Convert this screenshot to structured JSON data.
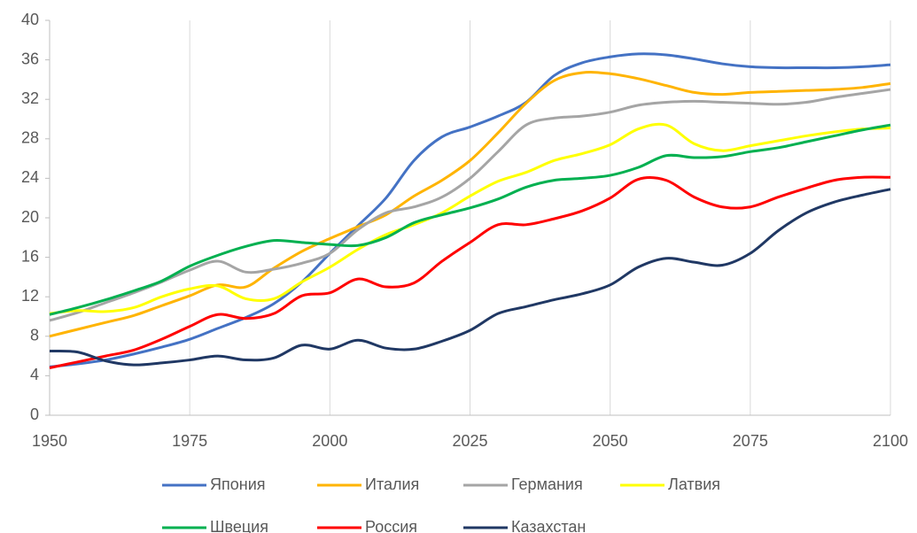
{
  "chart_data": {
    "type": "line",
    "x": [
      1950,
      1955,
      1960,
      1965,
      1970,
      1975,
      1980,
      1985,
      1990,
      1995,
      2000,
      2005,
      2010,
      2015,
      2020,
      2025,
      2030,
      2035,
      2040,
      2045,
      2050,
      2055,
      2060,
      2065,
      2070,
      2075,
      2080,
      2085,
      2090,
      2095,
      2100
    ],
    "xlim": [
      1950,
      2100
    ],
    "xticks": [
      1950,
      1975,
      2000,
      2025,
      2050,
      2075,
      2100
    ],
    "ylim": [
      0,
      40
    ],
    "yticks": [
      0,
      4,
      8,
      12,
      16,
      20,
      24,
      28,
      32,
      36,
      40
    ],
    "grid": true,
    "legend": "bottom",
    "series": [
      {
        "name": "Япония",
        "color": "#4472c4",
        "values": [
          4.9,
          5.2,
          5.6,
          6.2,
          6.9,
          7.7,
          8.8,
          9.9,
          11.3,
          13.5,
          16.4,
          19.2,
          22.0,
          25.8,
          28.2,
          29.2,
          30.3,
          31.7,
          34.4,
          35.7,
          36.3,
          36.6,
          36.5,
          36.1,
          35.6,
          35.3,
          35.2,
          35.2,
          35.2,
          35.3,
          35.5
        ]
      },
      {
        "name": "Италия",
        "color": "#ffb400",
        "values": [
          8.0,
          8.7,
          9.4,
          10.1,
          11.1,
          12.1,
          13.2,
          13.0,
          14.9,
          16.6,
          17.9,
          19.1,
          20.3,
          22.2,
          23.8,
          25.8,
          28.6,
          31.6,
          33.9,
          34.7,
          34.6,
          34.1,
          33.4,
          32.7,
          32.5,
          32.7,
          32.8,
          32.9,
          33.0,
          33.2,
          33.6
        ]
      },
      {
        "name": "Германия",
        "color": "#a5a5a5",
        "values": [
          9.6,
          10.4,
          11.4,
          12.4,
          13.5,
          14.7,
          15.6,
          14.5,
          14.8,
          15.4,
          16.4,
          18.8,
          20.5,
          21.1,
          22.1,
          24.0,
          26.7,
          29.4,
          30.1,
          30.3,
          30.7,
          31.4,
          31.7,
          31.8,
          31.7,
          31.6,
          31.5,
          31.7,
          32.2,
          32.6,
          33.0
        ]
      },
      {
        "name": "Латвия",
        "color": "#ffff00",
        "values": [
          10.3,
          10.6,
          10.5,
          10.9,
          12.0,
          12.8,
          13.1,
          11.8,
          11.8,
          13.5,
          15.0,
          16.8,
          18.3,
          19.3,
          20.5,
          22.2,
          23.7,
          24.6,
          25.8,
          26.5,
          27.4,
          29.0,
          29.4,
          27.5,
          26.8,
          27.3,
          27.8,
          28.3,
          28.7,
          29.0,
          29.1
        ]
      },
      {
        "name": "Швеция",
        "color": "#00b050",
        "values": [
          10.2,
          10.9,
          11.7,
          12.6,
          13.6,
          15.1,
          16.2,
          17.1,
          17.7,
          17.5,
          17.3,
          17.2,
          18.0,
          19.5,
          20.3,
          21.0,
          21.9,
          23.1,
          23.8,
          24.0,
          24.3,
          25.1,
          26.3,
          26.1,
          26.2,
          26.7,
          27.1,
          27.7,
          28.3,
          28.9,
          29.4
        ]
      },
      {
        "name": "Россия",
        "color": "#ff0000",
        "values": [
          4.8,
          5.4,
          6.0,
          6.6,
          7.7,
          9.0,
          10.2,
          9.8,
          10.3,
          12.1,
          12.4,
          13.8,
          13.0,
          13.4,
          15.6,
          17.5,
          19.3,
          19.3,
          19.9,
          20.7,
          22.0,
          23.9,
          23.8,
          22.1,
          21.1,
          21.1,
          22.1,
          23.0,
          23.8,
          24.1,
          24.1
        ]
      },
      {
        "name": "Казахстан",
        "color": "#203864",
        "values": [
          6.5,
          6.4,
          5.5,
          5.1,
          5.3,
          5.6,
          6.0,
          5.6,
          5.8,
          7.1,
          6.7,
          7.6,
          6.8,
          6.7,
          7.5,
          8.6,
          10.3,
          11.0,
          11.7,
          12.3,
          13.2,
          15.0,
          15.9,
          15.5,
          15.2,
          16.4,
          18.7,
          20.5,
          21.6,
          22.3,
          22.9
        ]
      }
    ]
  }
}
